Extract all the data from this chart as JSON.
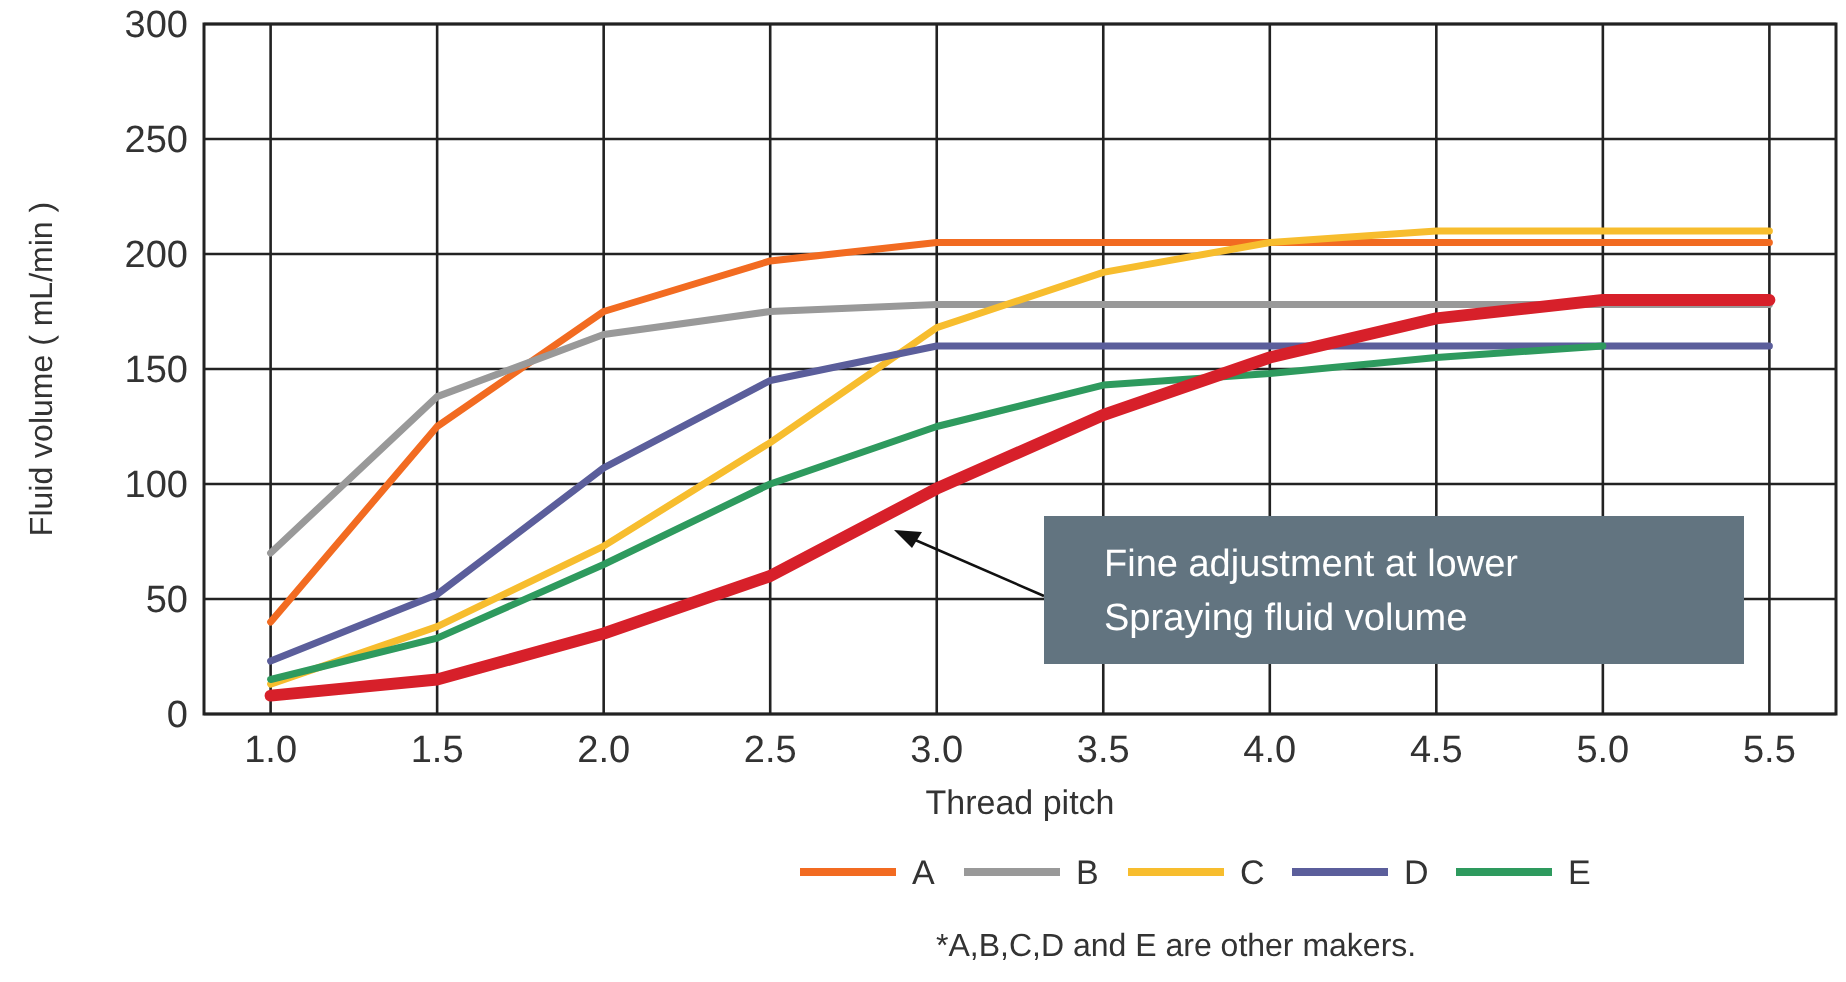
{
  "chart_data": {
    "type": "line",
    "xlabel": "Thread pitch",
    "ylabel": "Fluid volume ( mL/min )",
    "x": [
      1.0,
      1.5,
      2.0,
      2.5,
      3.0,
      3.5,
      4.0,
      4.5,
      5.0,
      5.5
    ],
    "xlim": [
      0.8,
      5.7
    ],
    "xticks": [
      {
        "value": 1,
        "label": "1.0"
      },
      {
        "value": 1.5,
        "label": "1.5"
      },
      {
        "value": 2,
        "label": "2.0"
      },
      {
        "value": 2.5,
        "label": "2.5"
      },
      {
        "value": 3,
        "label": "3.0"
      },
      {
        "value": 3.5,
        "label": "3.5"
      },
      {
        "value": 4,
        "label": "4.0"
      },
      {
        "value": 4.5,
        "label": "4.5"
      },
      {
        "value": 5,
        "label": "5.0"
      },
      {
        "value": 5.5,
        "label": "5.5"
      }
    ],
    "ylim": [
      0,
      300
    ],
    "yticks": [
      0,
      50,
      100,
      150,
      200,
      250,
      300
    ],
    "grid": true,
    "legend": "bottom",
    "marker": "none",
    "line_style": "solid",
    "series": [
      {
        "name": "A",
        "color": "#f26b21",
        "values": [
          40,
          125,
          175,
          197,
          205,
          205,
          205,
          205,
          205,
          205
        ]
      },
      {
        "name": "B",
        "color": "#999999",
        "values": [
          70,
          138,
          165,
          175,
          178,
          178,
          178,
          178,
          178,
          178
        ]
      },
      {
        "name": "C",
        "color": "#f7bd2e",
        "values": [
          13,
          38,
          73,
          118,
          168,
          192,
          205,
          210,
          210,
          210
        ]
      },
      {
        "name": "D",
        "color": "#5b5e9b",
        "values": [
          23,
          52,
          107,
          145,
          160,
          160,
          160,
          160,
          160,
          160
        ]
      },
      {
        "name": "E",
        "color": "#2e9a5e",
        "values": [
          15,
          33,
          65,
          100,
          125,
          143,
          148,
          155,
          160,
          null
        ]
      },
      {
        "color": "#d7202a",
        "values": [
          8,
          15,
          35,
          60,
          98,
          130,
          155,
          172,
          180,
          180
        ]
      }
    ],
    "annotations": [
      "Fine adjustment at lower\nSpraying fluid volume",
      "*A,B,C,D and E are other makers."
    ]
  }
}
